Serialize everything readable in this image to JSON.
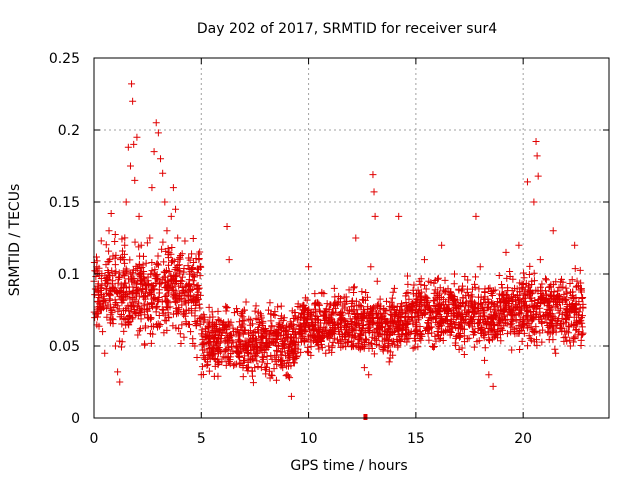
{
  "chart_data": {
    "type": "scatter",
    "title": "Day 202 of 2017, SRMTID for receiver sur4",
    "xlabel": "GPS time / hours",
    "ylabel": "SRMTID / TECUs",
    "xlim": [
      0,
      24
    ],
    "ylim": [
      0,
      0.25
    ],
    "x_ticks": [
      0,
      5,
      10,
      15,
      20
    ],
    "x_tick_labels": [
      "0",
      "5",
      "10",
      "15",
      "20"
    ],
    "y_ticks": [
      0,
      0.05,
      0.1,
      0.15,
      0.2,
      0.25
    ],
    "y_tick_labels": [
      "0",
      "0.05",
      "0.1",
      "0.15",
      "0.2",
      "0.25"
    ],
    "grid": true,
    "marker": "plus",
    "color": "#e00000",
    "series": [
      {
        "name": "SRMTID",
        "points": [
          [
            0.0,
            0.095
          ],
          [
            0.1,
            0.102
          ],
          [
            0.2,
            0.088
          ],
          [
            0.3,
            0.075
          ],
          [
            0.4,
            0.06
          ],
          [
            0.5,
            0.045
          ],
          [
            0.6,
            0.07
          ],
          [
            0.7,
            0.13
          ],
          [
            0.8,
            0.142
          ],
          [
            0.9,
            0.09
          ],
          [
            1.0,
            0.05
          ],
          [
            1.1,
            0.032
          ],
          [
            1.2,
            0.025
          ],
          [
            1.3,
            0.08
          ],
          [
            1.4,
            0.11
          ],
          [
            1.5,
            0.15
          ],
          [
            1.6,
            0.188
          ],
          [
            1.7,
            0.175
          ],
          [
            1.75,
            0.232
          ],
          [
            1.8,
            0.22
          ],
          [
            1.85,
            0.19
          ],
          [
            1.9,
            0.165
          ],
          [
            2.0,
            0.195
          ],
          [
            2.1,
            0.14
          ],
          [
            2.2,
            0.12
          ],
          [
            2.3,
            0.1
          ],
          [
            2.4,
            0.085
          ],
          [
            2.5,
            0.07
          ],
          [
            2.6,
            0.125
          ],
          [
            2.7,
            0.16
          ],
          [
            2.8,
            0.185
          ],
          [
            2.9,
            0.205
          ],
          [
            3.0,
            0.198
          ],
          [
            3.1,
            0.18
          ],
          [
            3.2,
            0.17
          ],
          [
            3.3,
            0.15
          ],
          [
            3.4,
            0.13
          ],
          [
            3.5,
            0.115
          ],
          [
            3.6,
            0.14
          ],
          [
            3.7,
            0.16
          ],
          [
            3.8,
            0.145
          ],
          [
            3.9,
            0.125
          ],
          [
            4.0,
            0.1
          ],
          [
            4.1,
            0.095
          ],
          [
            4.2,
            0.085
          ],
          [
            4.3,
            0.075
          ],
          [
            4.4,
            0.065
          ],
          [
            4.5,
            0.06
          ],
          [
            4.6,
            0.055
          ],
          [
            4.7,
            0.05
          ],
          [
            4.8,
            0.042
          ],
          [
            5.0,
            0.03
          ],
          [
            5.2,
            0.06
          ],
          [
            5.4,
            0.07
          ],
          [
            5.6,
            0.055
          ],
          [
            5.8,
            0.045
          ],
          [
            6.0,
            0.065
          ],
          [
            6.2,
            0.133
          ],
          [
            6.3,
            0.11
          ],
          [
            6.5,
            0.06
          ],
          [
            6.8,
            0.05
          ],
          [
            7.0,
            0.075
          ],
          [
            7.2,
            0.045
          ],
          [
            7.5,
            0.06
          ],
          [
            7.8,
            0.035
          ],
          [
            8.0,
            0.06
          ],
          [
            8.2,
            0.08
          ],
          [
            8.5,
            0.055
          ],
          [
            8.8,
            0.04
          ],
          [
            9.0,
            0.03
          ],
          [
            9.2,
            0.015
          ],
          [
            9.4,
            0.045
          ],
          [
            9.6,
            0.06
          ],
          [
            9.8,
            0.072
          ],
          [
            10.0,
            0.105
          ],
          [
            10.2,
            0.065
          ],
          [
            10.4,
            0.08
          ],
          [
            10.6,
            0.055
          ],
          [
            10.8,
            0.045
          ],
          [
            11.0,
            0.07
          ],
          [
            11.2,
            0.09
          ],
          [
            11.4,
            0.06
          ],
          [
            11.6,
            0.05
          ],
          [
            11.8,
            0.075
          ],
          [
            12.0,
            0.065
          ],
          [
            12.2,
            0.125
          ],
          [
            12.4,
            0.055
          ],
          [
            12.6,
            0.035
          ],
          [
            12.8,
            0.03
          ],
          [
            12.9,
            0.105
          ],
          [
            13.0,
            0.169
          ],
          [
            13.05,
            0.157
          ],
          [
            13.1,
            0.14
          ],
          [
            13.2,
            0.095
          ],
          [
            13.4,
            0.07
          ],
          [
            13.6,
            0.06
          ],
          [
            13.8,
            0.075
          ],
          [
            14.0,
            0.09
          ],
          [
            14.2,
            0.14
          ],
          [
            14.4,
            0.065
          ],
          [
            14.6,
            0.055
          ],
          [
            14.8,
            0.07
          ],
          [
            15.0,
            0.08
          ],
          [
            15.2,
            0.06
          ],
          [
            15.4,
            0.11
          ],
          [
            15.6,
            0.095
          ],
          [
            15.8,
            0.07
          ],
          [
            16.0,
            0.085
          ],
          [
            16.2,
            0.12
          ],
          [
            16.4,
            0.075
          ],
          [
            16.6,
            0.06
          ],
          [
            16.8,
            0.1
          ],
          [
            17.0,
            0.065
          ],
          [
            17.2,
            0.08
          ],
          [
            17.4,
            0.055
          ],
          [
            17.6,
            0.07
          ],
          [
            17.8,
            0.14
          ],
          [
            18.0,
            0.105
          ],
          [
            18.2,
            0.04
          ],
          [
            18.4,
            0.03
          ],
          [
            18.6,
            0.022
          ],
          [
            18.8,
            0.06
          ],
          [
            19.0,
            0.085
          ],
          [
            19.2,
            0.115
          ],
          [
            19.4,
            0.075
          ],
          [
            19.6,
            0.09
          ],
          [
            19.8,
            0.12
          ],
          [
            20.0,
            0.065
          ],
          [
            20.2,
            0.164
          ],
          [
            20.4,
            0.095
          ],
          [
            20.5,
            0.15
          ],
          [
            20.6,
            0.192
          ],
          [
            20.65,
            0.182
          ],
          [
            20.7,
            0.168
          ],
          [
            20.8,
            0.11
          ],
          [
            21.0,
            0.08
          ],
          [
            21.2,
            0.07
          ],
          [
            21.4,
            0.13
          ],
          [
            21.6,
            0.085
          ],
          [
            21.8,
            0.06
          ],
          [
            22.0,
            0.075
          ],
          [
            22.2,
            0.05
          ],
          [
            22.4,
            0.12
          ],
          [
            22.6,
            0.06
          ]
        ]
      }
    ],
    "cloud_bands": [
      {
        "x0": 0.0,
        "x1": 5.0,
        "lo": 0.045,
        "hi": 0.13
      },
      {
        "x0": 5.0,
        "x1": 9.5,
        "lo": 0.02,
        "hi": 0.085
      },
      {
        "x0": 9.5,
        "x1": 14.5,
        "lo": 0.035,
        "hi": 0.095
      },
      {
        "x0": 14.5,
        "x1": 19.0,
        "lo": 0.04,
        "hi": 0.105
      },
      {
        "x0": 19.0,
        "x1": 22.8,
        "lo": 0.04,
        "hi": 0.11
      }
    ],
    "outlier_marker": {
      "x": 12.65,
      "y": 0.0
    }
  }
}
